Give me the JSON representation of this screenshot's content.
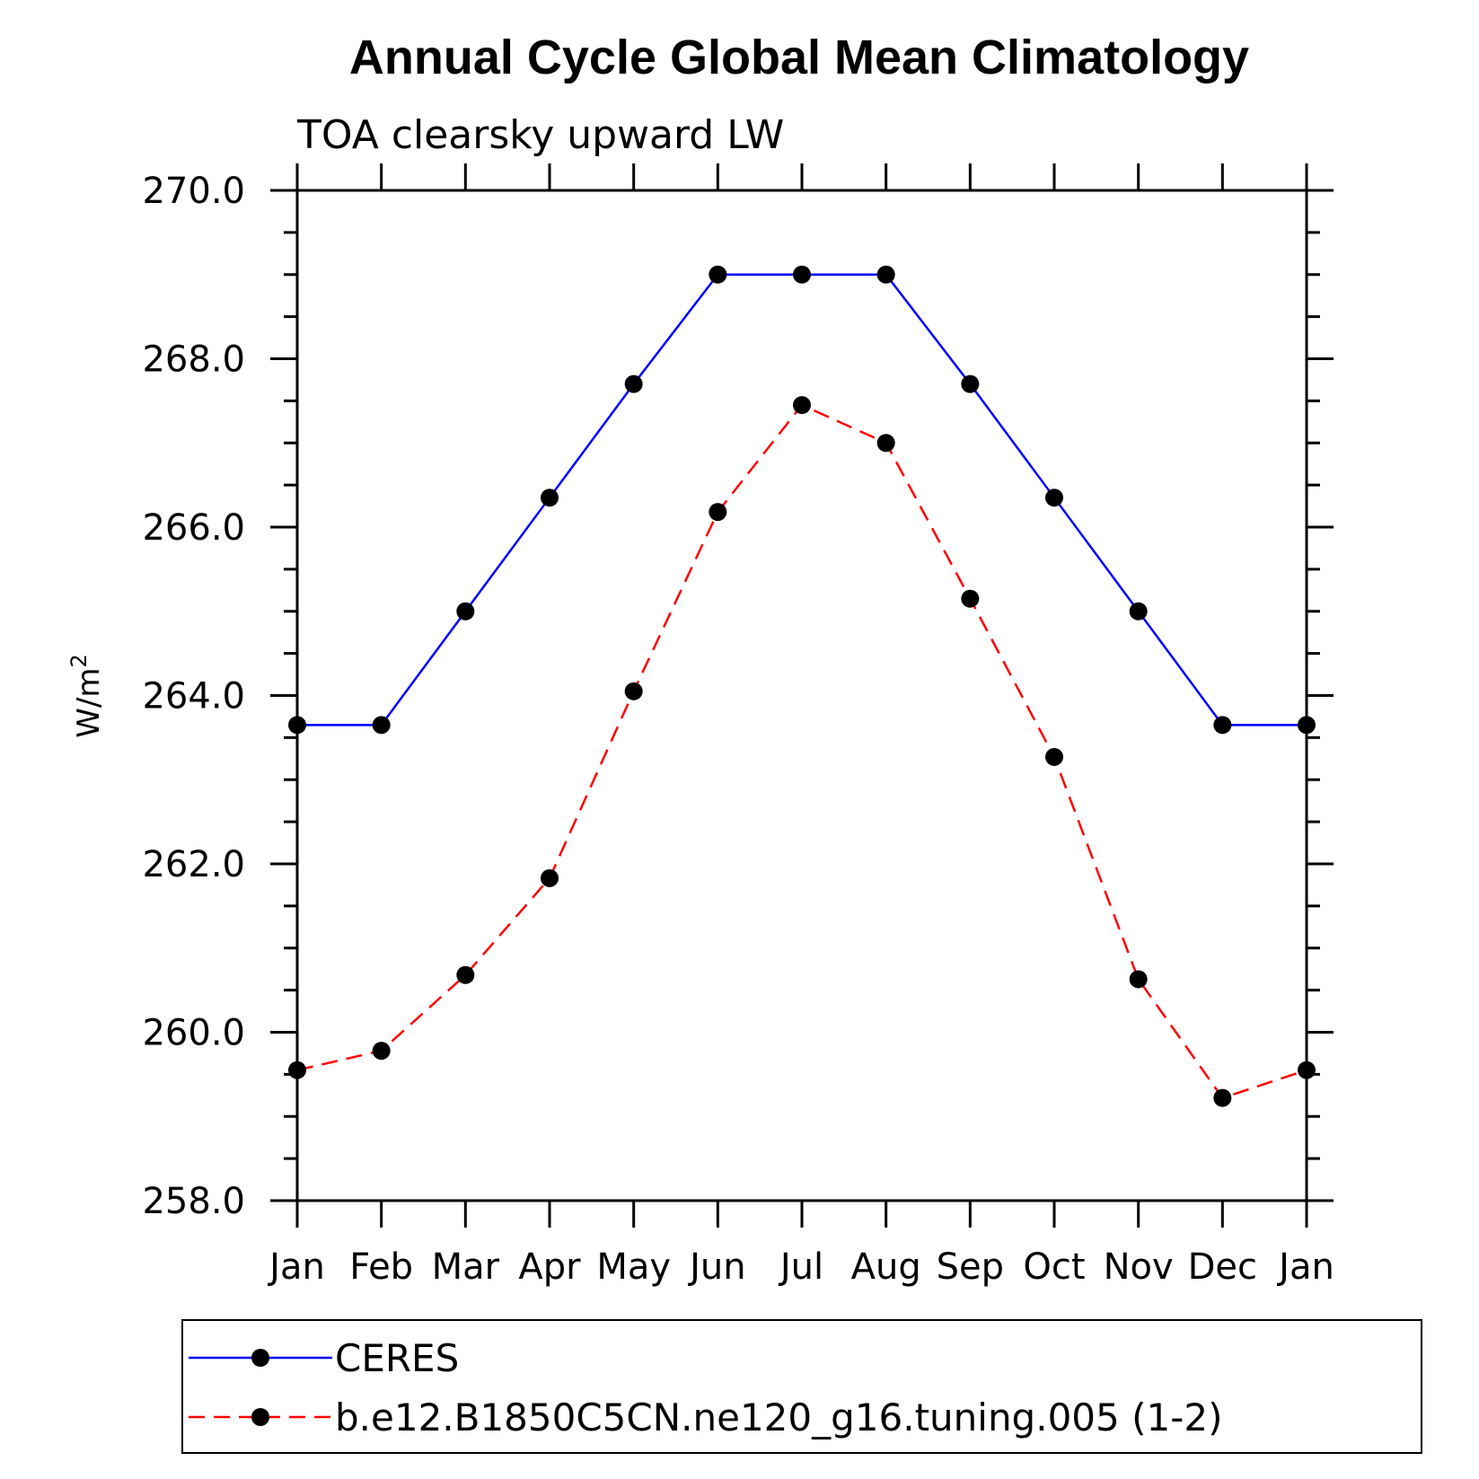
{
  "chart_data": {
    "type": "line",
    "title": "Annual Cycle Global Mean Climatology",
    "subtitle": "TOA clearsky upward LW",
    "ylabel": "W/m",
    "ylabel_superscript": "2",
    "ylim": [
      258.0,
      270.0
    ],
    "yticks": [
      "258.0",
      "260.0",
      "262.0",
      "264.0",
      "266.0",
      "268.0",
      "270.0"
    ],
    "categories": [
      "Jan",
      "Feb",
      "Mar",
      "Apr",
      "May",
      "Jun",
      "Jul",
      "Aug",
      "Sep",
      "Oct",
      "Nov",
      "Dec",
      "Jan"
    ],
    "grid": false,
    "legend_position": "bottom",
    "series": [
      {
        "name": "CERES",
        "color": "#0000ff",
        "dash": "solid",
        "values": [
          263.65,
          263.65,
          265.0,
          266.35,
          267.7,
          269.0,
          269.0,
          269.0,
          267.7,
          266.35,
          265.0,
          263.65,
          263.65
        ]
      },
      {
        "name": "b.e12.B1850C5CN.ne120_g16.tuning.005 (1-2)",
        "color": "#ff0000",
        "dash": "dashed",
        "values": [
          259.55,
          259.78,
          260.68,
          261.83,
          264.05,
          266.18,
          267.45,
          267.0,
          265.15,
          263.27,
          260.63,
          259.22,
          259.55
        ]
      }
    ]
  }
}
